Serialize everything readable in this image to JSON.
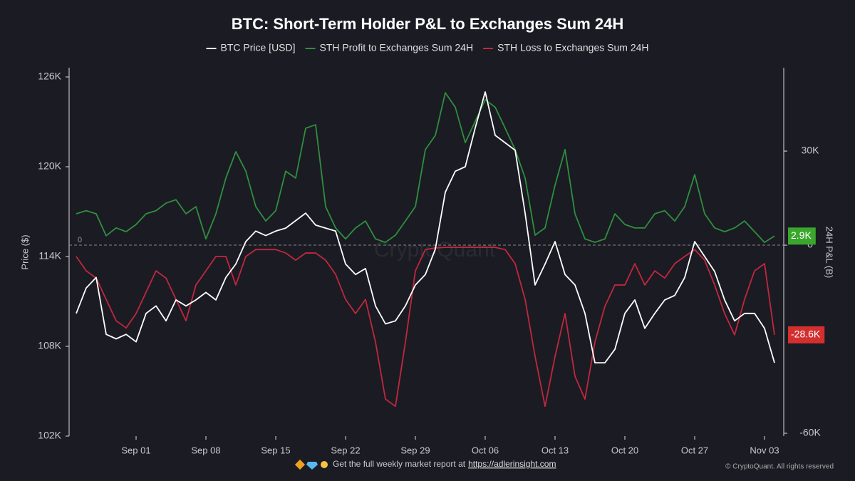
{
  "chart_data": {
    "type": "line",
    "title": "BTC: Short-Term Holder P&L to Exchanges Sum 24H",
    "y_label": "Price ($)",
    "y2_label": "24H P&L (B)",
    "watermark": "CryptoQuant",
    "footer": "Get the full weekly market report at",
    "footer_link": "https://adlerinsight.com",
    "copyright": "© CryptoQuant. All rights reserved",
    "categories": [
      null,
      null,
      null,
      null,
      null,
      null,
      "Sep 01",
      null,
      null,
      null,
      null,
      null,
      null,
      "Sep 08",
      null,
      null,
      null,
      null,
      null,
      null,
      "Sep 15",
      null,
      null,
      null,
      null,
      null,
      null,
      "Sep 22",
      null,
      null,
      null,
      null,
      null,
      null,
      "Sep 29",
      null,
      null,
      null,
      null,
      null,
      null,
      "Oct 06",
      null,
      null,
      null,
      null,
      null,
      null,
      "Oct 13",
      null,
      null,
      null,
      null,
      null,
      null,
      "Oct 20",
      null,
      null,
      null,
      null,
      null,
      null,
      "Oct 27",
      null,
      null,
      null,
      null,
      null,
      null,
      "Nov 03",
      null
    ],
    "series": [
      {
        "name": "BTC Price [USD]",
        "color": "#ffffff",
        "axis": "y",
        "values": [
          110200,
          111900,
          112600,
          108800,
          108500,
          108800,
          108300,
          110200,
          110700,
          109700,
          111100,
          110700,
          111100,
          111600,
          111100,
          112600,
          113500,
          115000,
          115700,
          115400,
          115700,
          115900,
          116400,
          116900,
          116100,
          115900,
          115700,
          113500,
          112800,
          113200,
          110700,
          109500,
          109700,
          110700,
          112100,
          112800,
          114500,
          118300,
          119700,
          120000,
          122600,
          125000,
          122100,
          121600,
          121100,
          116900,
          112100,
          113500,
          115000,
          112800,
          112100,
          110200,
          106900,
          106900,
          107800,
          110200,
          111100,
          109200,
          110200,
          111100,
          111400,
          112600,
          115000,
          114000,
          113000,
          111100,
          109700,
          110200,
          110200,
          109200,
          106900
        ]
      },
      {
        "name": "STH Profit to Exchanges Sum 24H",
        "color": "#2f8f3c",
        "axis": "y2",
        "values": [
          10000,
          11000,
          10000,
          3000,
          5500,
          4300,
          6600,
          10000,
          11000,
          13400,
          14500,
          10000,
          12300,
          2000,
          10000,
          21400,
          29800,
          23600,
          12300,
          7700,
          11000,
          23600,
          21400,
          37300,
          38400,
          12300,
          5500,
          2000,
          5500,
          7700,
          2000,
          900,
          3200,
          7700,
          12300,
          30500,
          35000,
          48600,
          44000,
          32700,
          39500,
          46400,
          44000,
          37300,
          30500,
          21400,
          3200,
          5500,
          19100,
          30500,
          10000,
          2000,
          900,
          2000,
          10000,
          6600,
          5500,
          5500,
          10000,
          11000,
          7700,
          12300,
          22500,
          10000,
          5500,
          4300,
          5500,
          7700,
          4300,
          900,
          2900
        ]
      },
      {
        "name": "STH Loss to Exchanges Sum 24H",
        "color": "#c0283c",
        "axis": "y2",
        "values": [
          -3600,
          -8200,
          -10500,
          -17300,
          -24100,
          -26400,
          -21800,
          -15000,
          -8200,
          -10500,
          -17300,
          -24100,
          -12700,
          -8200,
          -3600,
          -3600,
          -12700,
          -3600,
          -1400,
          -1400,
          -1400,
          -2500,
          -4800,
          -2500,
          -2500,
          -4800,
          -9300,
          -17300,
          -21800,
          -17300,
          -30900,
          -49100,
          -51400,
          -30900,
          -8200,
          -1400,
          -900,
          -700,
          -700,
          -700,
          -700,
          -700,
          -700,
          -1400,
          -5900,
          -17300,
          -35500,
          -51400,
          -35500,
          -21800,
          -41800,
          -49100,
          -30900,
          -19500,
          -12700,
          -12700,
          -5900,
          -12700,
          -8200,
          -10500,
          -5900,
          -3600,
          -1400,
          -4800,
          -12700,
          -21800,
          -28600,
          -17300,
          -8200,
          -5900,
          -28600
        ]
      }
    ],
    "current_labels": [
      {
        "value": 2900,
        "label": "2.9K",
        "color": "#3aa62c"
      },
      {
        "value": -28600,
        "label": "-28.6K",
        "color": "#d32f2f"
      }
    ],
    "y2_reference": 0,
    "ylim": [
      102000,
      126619
    ],
    "yticks": [
      {
        "value": 102000,
        "label": "102K"
      },
      {
        "value": 108000,
        "label": "108K"
      },
      {
        "value": 114000,
        "label": "114K"
      },
      {
        "value": 120000,
        "label": "120K"
      },
      {
        "value": 126000,
        "label": "126K"
      }
    ],
    "y2lim": [
      -60900,
      56600
    ],
    "y2ticks": [
      {
        "value": -60000,
        "label": "-60K"
      },
      0,
      {
        "value": 30000,
        "label": "30K"
      }
    ]
  }
}
